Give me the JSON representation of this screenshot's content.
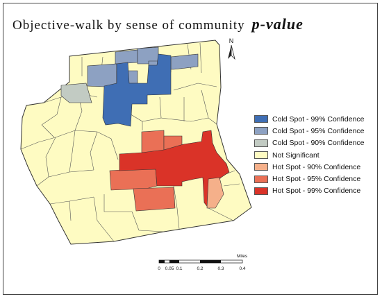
{
  "title": {
    "main": "Objective-walk by sense of community",
    "emphasis": "p-value"
  },
  "north_arrow": {
    "label": "N"
  },
  "legend": {
    "items": [
      {
        "label": "Cold Spot - 99% Confidence",
        "color": "#3f6eb4"
      },
      {
        "label": "Cold Spot - 95% Confidence",
        "color": "#8da1c2"
      },
      {
        "label": "Cold Spot - 90% Confidence",
        "color": "#c2cbc3"
      },
      {
        "label": "Not Significant",
        "color": "#fefbc2"
      },
      {
        "label": "Hot Spot - 90% Confidence",
        "color": "#f5b08a"
      },
      {
        "label": "Hot Spot - 95% Confidence",
        "color": "#ea7056"
      },
      {
        "label": "Hot Spot - 99% Confidence",
        "color": "#da3328"
      }
    ]
  },
  "scale_bar": {
    "unit": "Miles",
    "ticks": [
      "0",
      "0.05",
      "0.1",
      "0.2",
      "0.3",
      "0.4"
    ]
  }
}
